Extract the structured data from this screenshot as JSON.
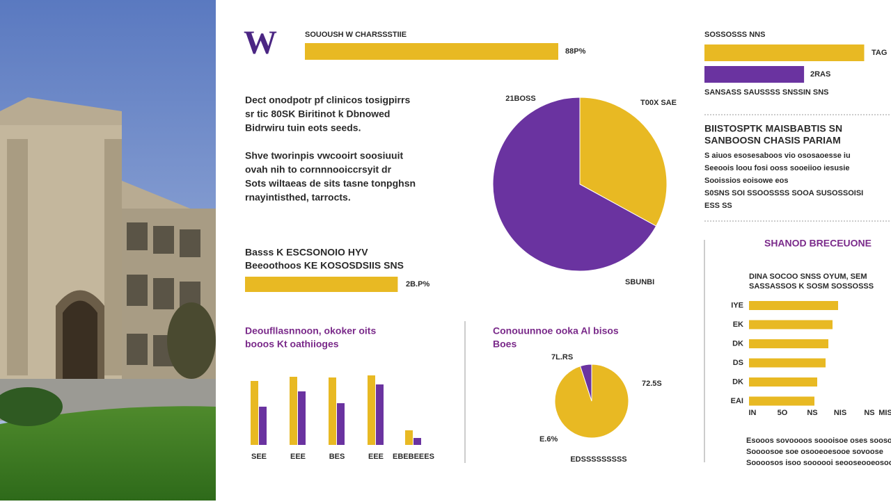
{
  "logo": "W",
  "text_blocks": {
    "intro": [
      "Dect onodpotr pf clinicos tosigpirrs",
      "sr tic 80SK Biritinot k Dbnowed",
      "Bidrwiru tuin eots seeds."
    ],
    "body": [
      "Shve tworinpis vwcooirt soosiuuit",
      "ovah nih to cornnnooiccrsyit dr",
      "Sots wiltaeas de sits tasne tonpghsn",
      "rnayintisthed, tarrocts."
    ],
    "right_heading": [
      "BIISTOSPTK MAISBABTIS SN",
      "SANBOOSN CHASIS PARIAM"
    ],
    "right_body": [
      "S aiuos esosesaboos vio ososaoesse iu",
      "Seeoois loou fosi ooss sooeiioo iesusie",
      "Sooissios eoisowe eos",
      "S0SNS SOI SSOOSSSS SOOA SUSOSSOISI",
      "ESS SS"
    ],
    "right_footer": [
      "Esooos sovoooos soooisoe oses soosoe",
      "Soooosoe soe osooeoesooe sovoose",
      "Soooosos isoo soooooi seooseooeosooe"
    ]
  },
  "chart_data": [
    {
      "type": "hbar",
      "title": [
        "SOUOUSH W CHARSSSTIIE"
      ],
      "values": [
        88
      ],
      "colors": [
        "#e8b923"
      ],
      "xlim": [
        0,
        100
      ],
      "annotations": [
        "88P%"
      ]
    },
    {
      "type": "pie",
      "values": [
        33,
        67
      ],
      "colors": [
        "#e8b923",
        "#6a33a0"
      ],
      "annotations": [
        "21BOSS",
        "T00X SAE",
        "SBUNBI"
      ]
    },
    {
      "type": "hbar",
      "title": [
        "Basss K ESCSONOIO HYV",
        "Beeoothoos KE KOSOSDSIIS SNS"
      ],
      "values": [
        53
      ],
      "colors": [
        "#e8b923"
      ],
      "xlim": [
        0,
        100
      ],
      "annotations": [
        "2B.P%"
      ]
    },
    {
      "type": "bar",
      "title": [
        "Deoufllasnnoon, okoker oits",
        "booos Kt oathiioges"
      ],
      "categories": [
        "SEE",
        "EEE",
        "BES",
        "EEE",
        "EBEBEEES"
      ],
      "series": [
        {
          "color": "#e8b923",
          "values": [
            92,
            98,
            97,
            100,
            21
          ]
        },
        {
          "color": "#6a33a0",
          "values": [
            55,
            77,
            60,
            87,
            10
          ]
        }
      ],
      "ylim": [
        0,
        100
      ]
    },
    {
      "type": "pie",
      "title": [
        "Conouunnoe ooka Al bisos",
        "Boes"
      ],
      "values": [
        95,
        5
      ],
      "colors": [
        "#e8b923",
        "#6a33a0"
      ],
      "annotations": [
        "7L.RS",
        "72.5S",
        "E.6%"
      ],
      "caption": "EDSSSSSSSSS"
    },
    {
      "type": "hbar",
      "title": [
        "SHANOD BRECEUONE"
      ],
      "subtitle": [
        "DINA SOCOO SNSS OYUM, SEM",
        "SASSASSOS K SOSM SOSSOSSS"
      ],
      "categories": [
        "IYE",
        "EK",
        "DK",
        "DS",
        "DK",
        "EAI"
      ],
      "values": [
        64,
        60,
        57,
        55,
        49,
        47
      ],
      "colors": [
        "#e8b923"
      ],
      "xlim": [
        0,
        100
      ],
      "x_labels": [
        "IN",
        "5O",
        "NS",
        "NIS",
        "NS",
        "MIS"
      ]
    },
    {
      "type": "hbar",
      "title": [
        "SOSSOSSS NNS"
      ],
      "values": [
        85,
        53
      ],
      "colors": [
        "#e8b923",
        "#6a33a0"
      ],
      "xlim": [
        0,
        100
      ],
      "annotations": [
        "TAG",
        "2RAS"
      ],
      "caption": "SANSASS SAUSSSS SNSSIN SNS"
    }
  ]
}
